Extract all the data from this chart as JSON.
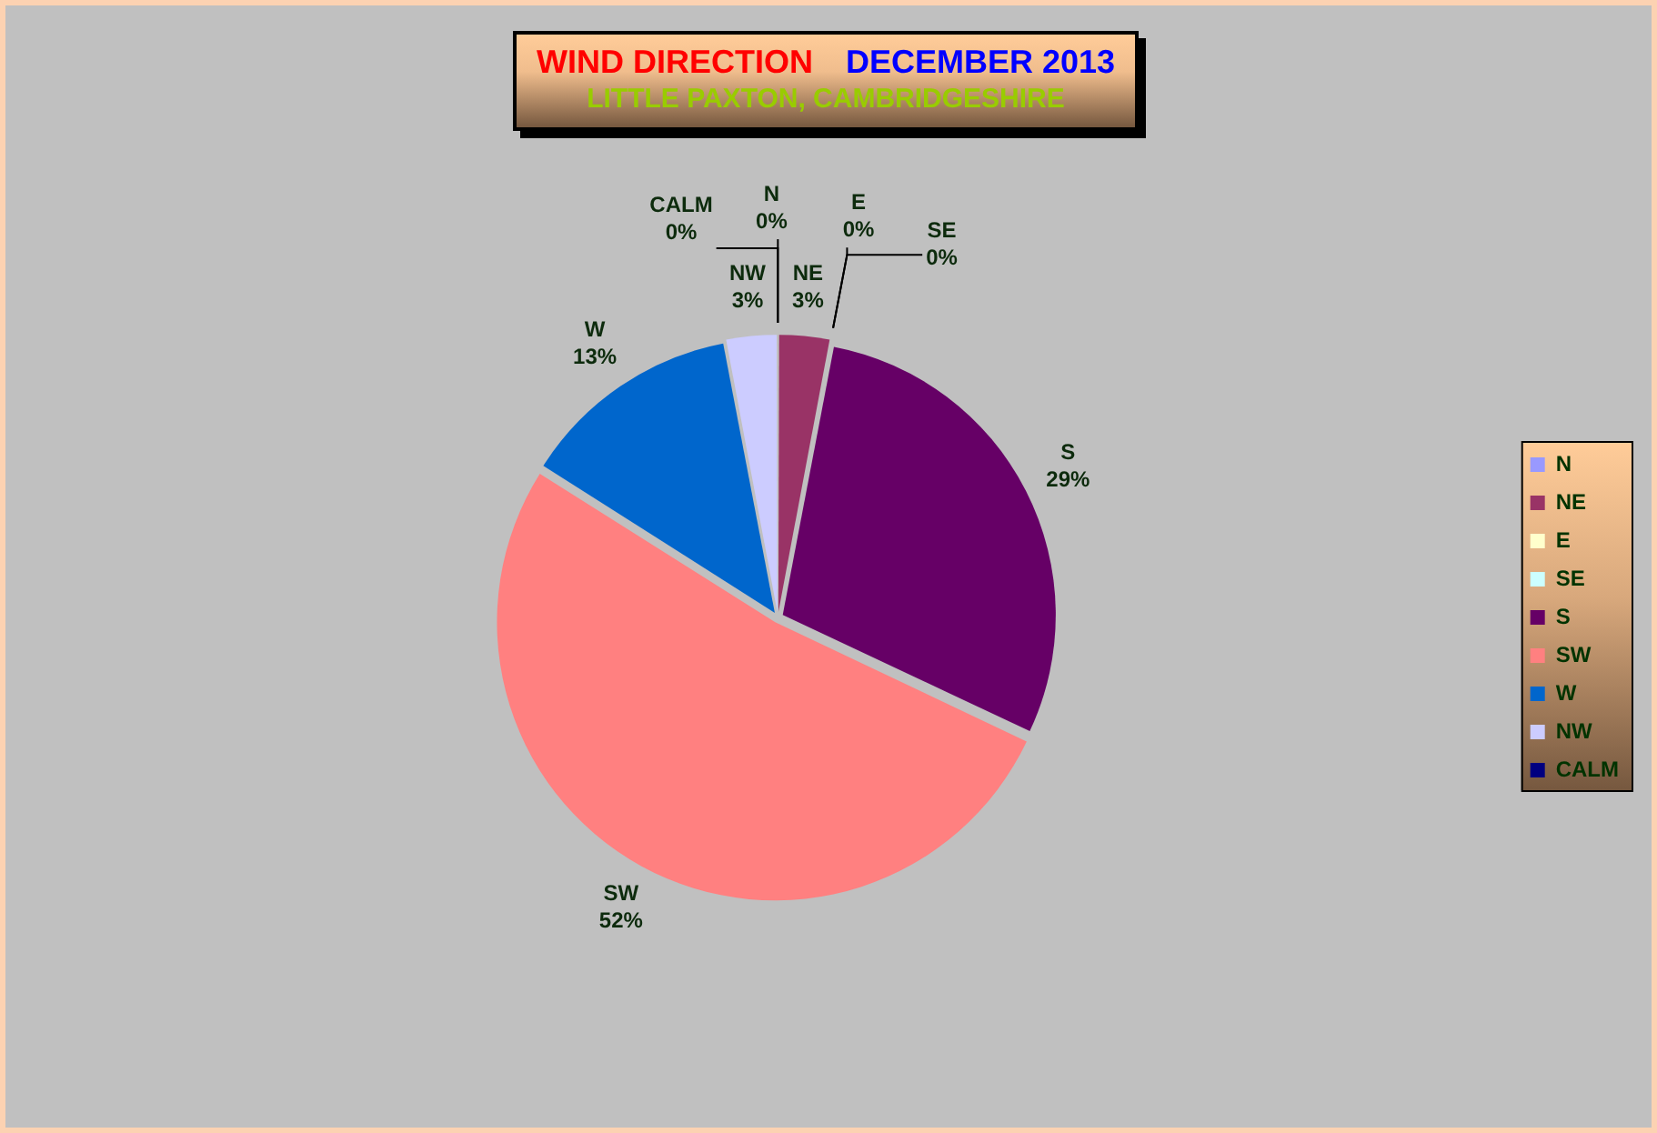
{
  "chart_data": {
    "type": "pie",
    "title": "WIND DIRECTION",
    "subtitle": "DECEMBER 2013",
    "annotations": [
      "LITTLE PAXTON, CAMBRIDGESHIRE"
    ],
    "categories": [
      "N",
      "NE",
      "E",
      "SE",
      "S",
      "SW",
      "W",
      "NW",
      "CALM"
    ],
    "values": [
      0,
      3,
      0,
      0,
      29,
      52,
      13,
      3,
      0
    ],
    "colors": [
      "#9999ff",
      "#993366",
      "#ffffcc",
      "#ccffff",
      "#660066",
      "#ff8080",
      "#0066cc",
      "#ccccff",
      "#000080"
    ],
    "value_labels": [
      "0%",
      "3%",
      "0%",
      "0%",
      "29%",
      "52%",
      "13%",
      "3%",
      "0%"
    ],
    "legend": "right"
  }
}
